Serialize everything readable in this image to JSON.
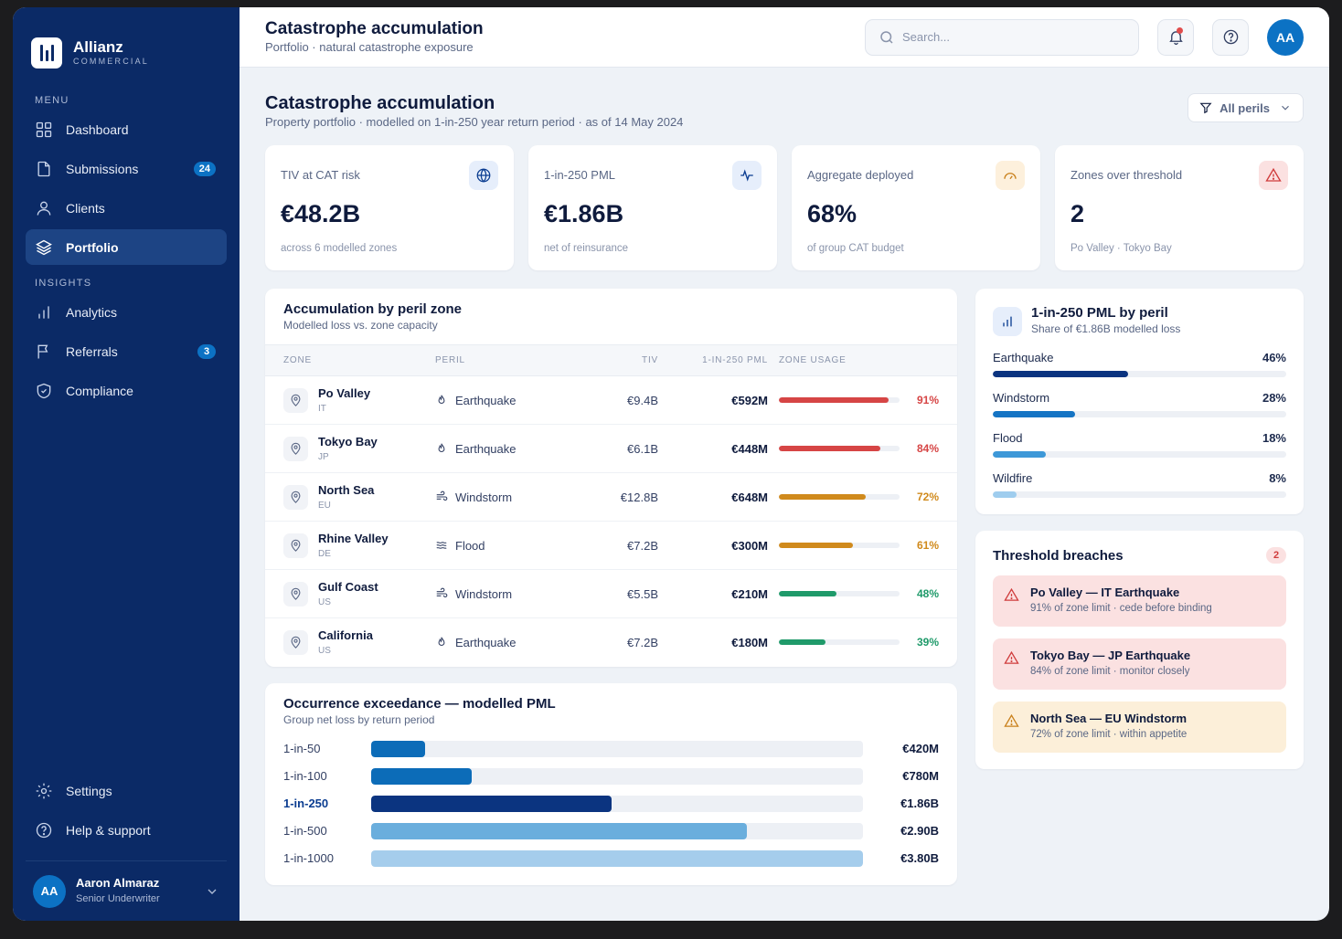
{
  "brand": {
    "name": "Allianz",
    "sub": "COMMERCIAL"
  },
  "sidebar": {
    "menu_label": "MENU",
    "insights_label": "INSIGHTS",
    "items": [
      {
        "label": "Dashboard",
        "icon": "grid-icon"
      },
      {
        "label": "Submissions",
        "icon": "file-icon",
        "badge": "24"
      },
      {
        "label": "Clients",
        "icon": "user-icon"
      },
      {
        "label": "Portfolio",
        "icon": "layers-icon",
        "active": true
      }
    ],
    "insights": [
      {
        "label": "Analytics",
        "icon": "bar-chart-icon"
      },
      {
        "label": "Referrals",
        "icon": "flag-icon",
        "badge": "3"
      },
      {
        "label": "Compliance",
        "icon": "shield-icon"
      }
    ],
    "settings": "Settings",
    "help": "Help & support",
    "user": {
      "initials": "AA",
      "name": "Aaron Almaraz",
      "role": "Senior Underwriter"
    }
  },
  "topbar": {
    "title": "Catastrophe accumulation",
    "subtitle": "Portfolio · natural catastrophe exposure",
    "search_placeholder": "Search...",
    "avatar": "AA"
  },
  "page": {
    "title": "Catastrophe accumulation",
    "subtitle": "Property portfolio · modelled on 1-in-250 year return period · as of 14 May 2024",
    "filter": "All perils"
  },
  "kpis": [
    {
      "label": "TIV at CAT risk",
      "value": "€48.2B",
      "sub": "across 6 modelled zones",
      "icon": "globe-icon",
      "bg": "#e6eefb",
      "color": "#0b3d91"
    },
    {
      "label": "1-in-250 PML",
      "value": "€1.86B",
      "sub": "net of reinsurance",
      "icon": "activity-icon",
      "bg": "#e6eefb",
      "color": "#0b3d91"
    },
    {
      "label": "Aggregate deployed",
      "value": "68%",
      "sub": "of group CAT budget",
      "icon": "gauge-icon",
      "bg": "#fdf0dc",
      "color": "#c9801b"
    },
    {
      "label": "Zones over threshold",
      "value": "2",
      "sub": "Po Valley · Tokyo Bay",
      "icon": "warning-icon",
      "bg": "#fbe1e1",
      "color": "#d03c3c"
    }
  ],
  "accumulation": {
    "title": "Accumulation by peril zone",
    "subtitle": "Modelled loss vs. zone capacity",
    "columns": [
      "ZONE",
      "PERIL",
      "TIV",
      "1-IN-250 PML",
      "ZONE USAGE"
    ],
    "rows": [
      {
        "zone": "Po Valley",
        "code": "IT",
        "peril": "Earthquake",
        "peril_icon": "flame-icon",
        "tiv": "€9.4B",
        "pml": "€592M",
        "usage": 91,
        "usage_label": "91%",
        "color": "#d64545"
      },
      {
        "zone": "Tokyo Bay",
        "code": "JP",
        "peril": "Earthquake",
        "peril_icon": "flame-icon",
        "tiv": "€6.1B",
        "pml": "€448M",
        "usage": 84,
        "usage_label": "84%",
        "color": "#d64545"
      },
      {
        "zone": "North Sea",
        "code": "EU",
        "peril": "Windstorm",
        "peril_icon": "wind-icon",
        "tiv": "€12.8B",
        "pml": "€648M",
        "usage": 72,
        "usage_label": "72%",
        "color": "#d08a1c"
      },
      {
        "zone": "Rhine Valley",
        "code": "DE",
        "peril": "Flood",
        "peril_icon": "waves-icon",
        "tiv": "€7.2B",
        "pml": "€300M",
        "usage": 61,
        "usage_label": "61%",
        "color": "#d08a1c"
      },
      {
        "zone": "Gulf Coast",
        "code": "US",
        "peril": "Windstorm",
        "peril_icon": "wind-icon",
        "tiv": "€5.5B",
        "pml": "€210M",
        "usage": 48,
        "usage_label": "48%",
        "color": "#1f9a6a"
      },
      {
        "zone": "California",
        "code": "US",
        "peril": "Earthquake",
        "peril_icon": "flame-icon",
        "tiv": "€7.2B",
        "pml": "€180M",
        "usage": 39,
        "usage_label": "39%",
        "color": "#1f9a6a"
      }
    ]
  },
  "oep": {
    "title": "Occurrence exceedance — modelled PML",
    "subtitle": "Group net loss by return period",
    "rows": [
      {
        "label": "1-in-50",
        "value": 0.42,
        "value_label": "€420M",
        "color": "#0c6cb8"
      },
      {
        "label": "1-in-100",
        "value": 0.78,
        "value_label": "€780M",
        "color": "#0c6cb8"
      },
      {
        "label": "1-in-250",
        "value": 1.86,
        "value_label": "€1.86B",
        "color": "#0b3480",
        "highlight": true
      },
      {
        "label": "1-in-500",
        "value": 2.9,
        "value_label": "€2.90B",
        "color": "#6aaedd"
      },
      {
        "label": "1-in-1000",
        "value": 3.8,
        "value_label": "€3.80B",
        "color": "#a5cdec"
      }
    ],
    "max": 3.8
  },
  "pml_by_peril": {
    "title": "1-in-250 PML by peril",
    "subtitle": "Share of €1.86B modelled loss",
    "rows": [
      {
        "label": "Earthquake",
        "value": 46,
        "value_label": "46%",
        "color": "#0b3480"
      },
      {
        "label": "Windstorm",
        "value": 28,
        "value_label": "28%",
        "color": "#1574c4"
      },
      {
        "label": "Flood",
        "value": 18,
        "value_label": "18%",
        "color": "#3d98d8"
      },
      {
        "label": "Wildfire",
        "value": 8,
        "value_label": "8%",
        "color": "#9fcdee"
      }
    ]
  },
  "breaches": {
    "title": "Threshold breaches",
    "count": "2",
    "items": [
      {
        "title": "Po Valley — IT Earthquake",
        "sub": "91% of zone limit · cede before binding",
        "bg": "#fbe1e1",
        "color": "#d03c3c"
      },
      {
        "title": "Tokyo Bay — JP Earthquake",
        "sub": "84% of zone limit · monitor closely",
        "bg": "#fbe1e1",
        "color": "#d03c3c"
      },
      {
        "title": "North Sea — EU Windstorm",
        "sub": "72% of zone limit · within appetite",
        "bg": "#fcefd9",
        "color": "#c9801b"
      }
    ]
  }
}
